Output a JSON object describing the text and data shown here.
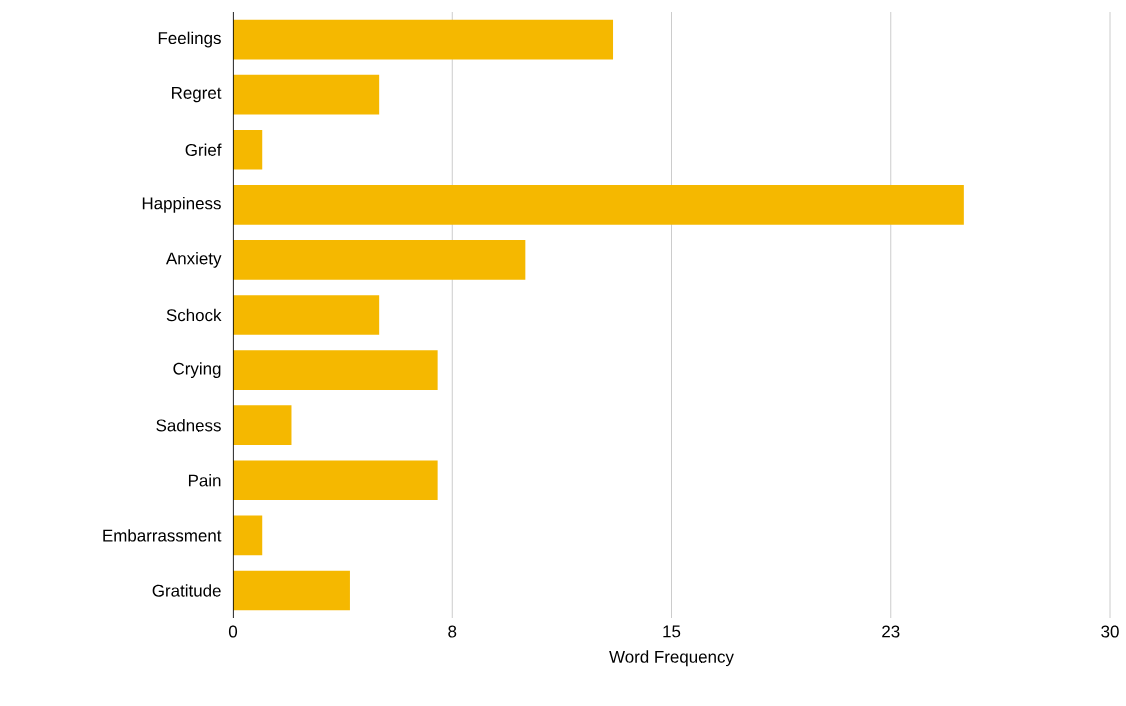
{
  "chart_data": {
    "type": "bar",
    "orientation": "horizontal",
    "xlabel": "Word Frequency",
    "categories": [
      "Feelings",
      "Regret",
      "Grief",
      "Happiness",
      "Anxiety",
      "Schock",
      "Crying",
      "Sadness",
      "Pain",
      "Embarrassment",
      "Gratitude"
    ],
    "values": [
      13,
      5,
      1,
      25,
      10,
      5,
      7,
      2,
      7,
      1,
      4
    ],
    "color": "#f5b800",
    "xlim": [
      0,
      30
    ],
    "xticks": [
      0,
      {
        "value": 7.5,
        "label": "8"
      },
      15,
      {
        "value": 22.5,
        "label": "23"
      },
      30
    ],
    "grid": "x"
  }
}
